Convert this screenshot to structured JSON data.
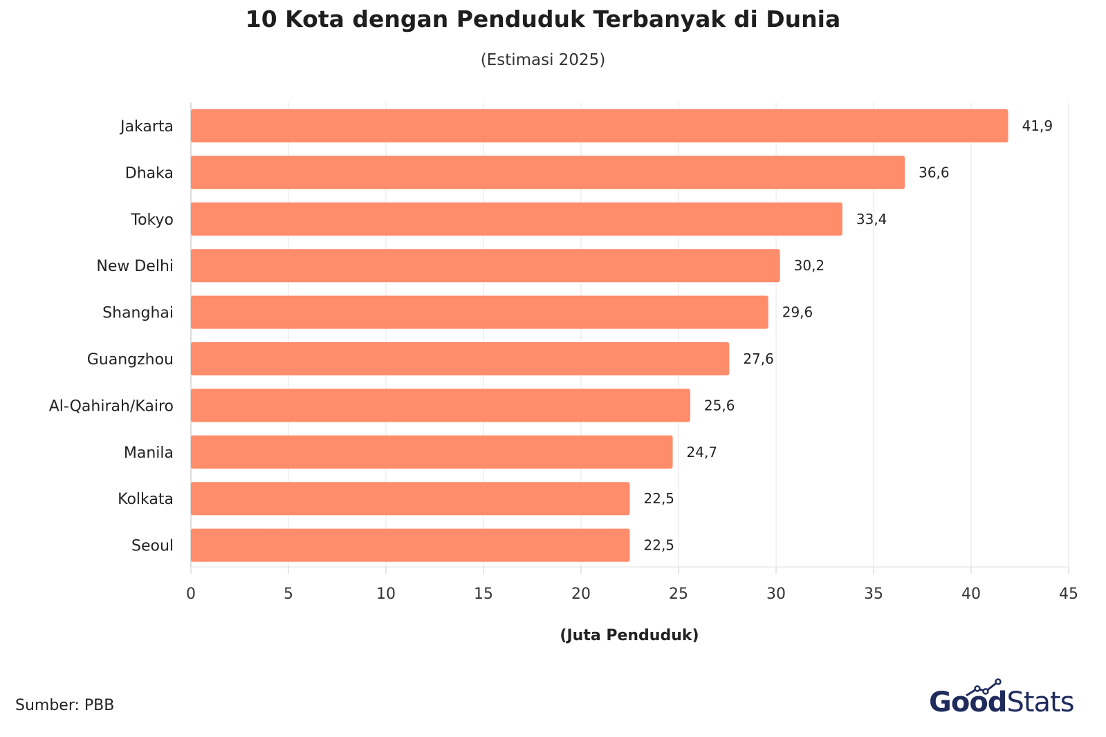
{
  "chart_data": {
    "type": "bar",
    "orientation": "horizontal",
    "title": "10 Kota dengan Penduduk Terbanyak di Dunia",
    "subtitle": "(Estimasi 2025)",
    "xlabel": "(Juta Penduduk)",
    "ylabel": "",
    "categories": [
      "Jakarta",
      "Dhaka",
      "Tokyo",
      "New Delhi",
      "Shanghai",
      "Guangzhou",
      "Al-Qahirah/Kairo",
      "Manila",
      "Kolkata",
      "Seoul"
    ],
    "values": [
      41.9,
      36.6,
      33.4,
      30.2,
      29.6,
      27.6,
      25.6,
      24.7,
      22.5,
      22.5
    ],
    "value_labels": [
      "41,9",
      "36,6",
      "33,4",
      "30,2",
      "29,6",
      "27,6",
      "25,6",
      "24,7",
      "22,5",
      "22,5"
    ],
    "xlim": [
      0,
      45
    ],
    "xticks": [
      0,
      5,
      10,
      15,
      20,
      25,
      30,
      35,
      40,
      45
    ],
    "grid": true,
    "bar_color": "#ff8c6b",
    "grid_color": "#e4e4e4"
  },
  "footer": {
    "source": "Sumber: PBB",
    "logo_good": "Good",
    "logo_stats": "Stats"
  }
}
